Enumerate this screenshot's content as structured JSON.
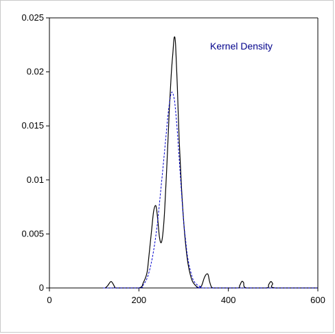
{
  "chart_data": {
    "type": "line",
    "title": "",
    "xlabel": "",
    "ylabel": "",
    "xlim": [
      0,
      600
    ],
    "ylim": [
      0,
      0.025
    ],
    "x_ticks": [
      0,
      200,
      400,
      600
    ],
    "x_tick_labels": [
      "0",
      "200",
      "400",
      "600"
    ],
    "y_ticks": [
      0,
      0.005,
      0.01,
      0.015,
      0.02,
      0.025
    ],
    "y_tick_labels": [
      "0",
      "0.005",
      "0.01",
      "0.015",
      "0.02",
      "0.025"
    ],
    "grid": false,
    "annotation": {
      "text": "Kernel Density",
      "color": "#00008b"
    },
    "series": [
      {
        "style": "solid",
        "color": "#000000",
        "x": [
          125,
          130,
          135,
          138,
          142,
          146,
          150,
          200,
          210,
          218,
          222,
          228,
          233,
          238,
          242,
          246,
          250,
          254,
          258,
          263,
          268,
          272,
          276,
          279,
          282,
          286,
          290,
          295,
          300,
          305,
          310,
          315,
          320,
          325,
          330,
          335,
          340,
          345,
          348,
          352,
          355,
          358,
          362,
          366,
          370,
          420,
          425,
          430,
          434,
          440,
          485,
          490,
          495,
          499,
          505,
          600
        ],
        "y": [
          0,
          0.0002,
          0.0005,
          0.0006,
          0.0004,
          0.0001,
          0,
          0,
          0.0005,
          0.0014,
          0.0028,
          0.0052,
          0.0071,
          0.0076,
          0.0064,
          0.0047,
          0.0042,
          0.0052,
          0.0075,
          0.0118,
          0.0165,
          0.0196,
          0.0218,
          0.0232,
          0.0225,
          0.0185,
          0.0138,
          0.0095,
          0.0062,
          0.0038,
          0.0022,
          0.0012,
          0.0006,
          0.0003,
          0.0001,
          0,
          0.0002,
          0.0008,
          0.0011,
          0.0013,
          0.0012,
          0.0006,
          0.0001,
          0,
          0,
          0,
          0.0002,
          0.0006,
          0.0005,
          0,
          0,
          0.0003,
          0.0006,
          0.0004,
          0,
          0
        ]
      },
      {
        "style": "dashed",
        "color": "#0000cd",
        "x": [
          120,
          200,
          210,
          220,
          230,
          240,
          250,
          260,
          265,
          270,
          273,
          276,
          280,
          285,
          290,
          295,
          300,
          305,
          310,
          320,
          330,
          340,
          350,
          600
        ],
        "y": [
          0,
          0,
          0.0003,
          0.0011,
          0.0028,
          0.0055,
          0.0095,
          0.0138,
          0.016,
          0.0176,
          0.0181,
          0.018,
          0.0172,
          0.015,
          0.012,
          0.009,
          0.0062,
          0.0042,
          0.0026,
          0.0009,
          0.0003,
          0.0001,
          0,
          0
        ]
      }
    ]
  }
}
